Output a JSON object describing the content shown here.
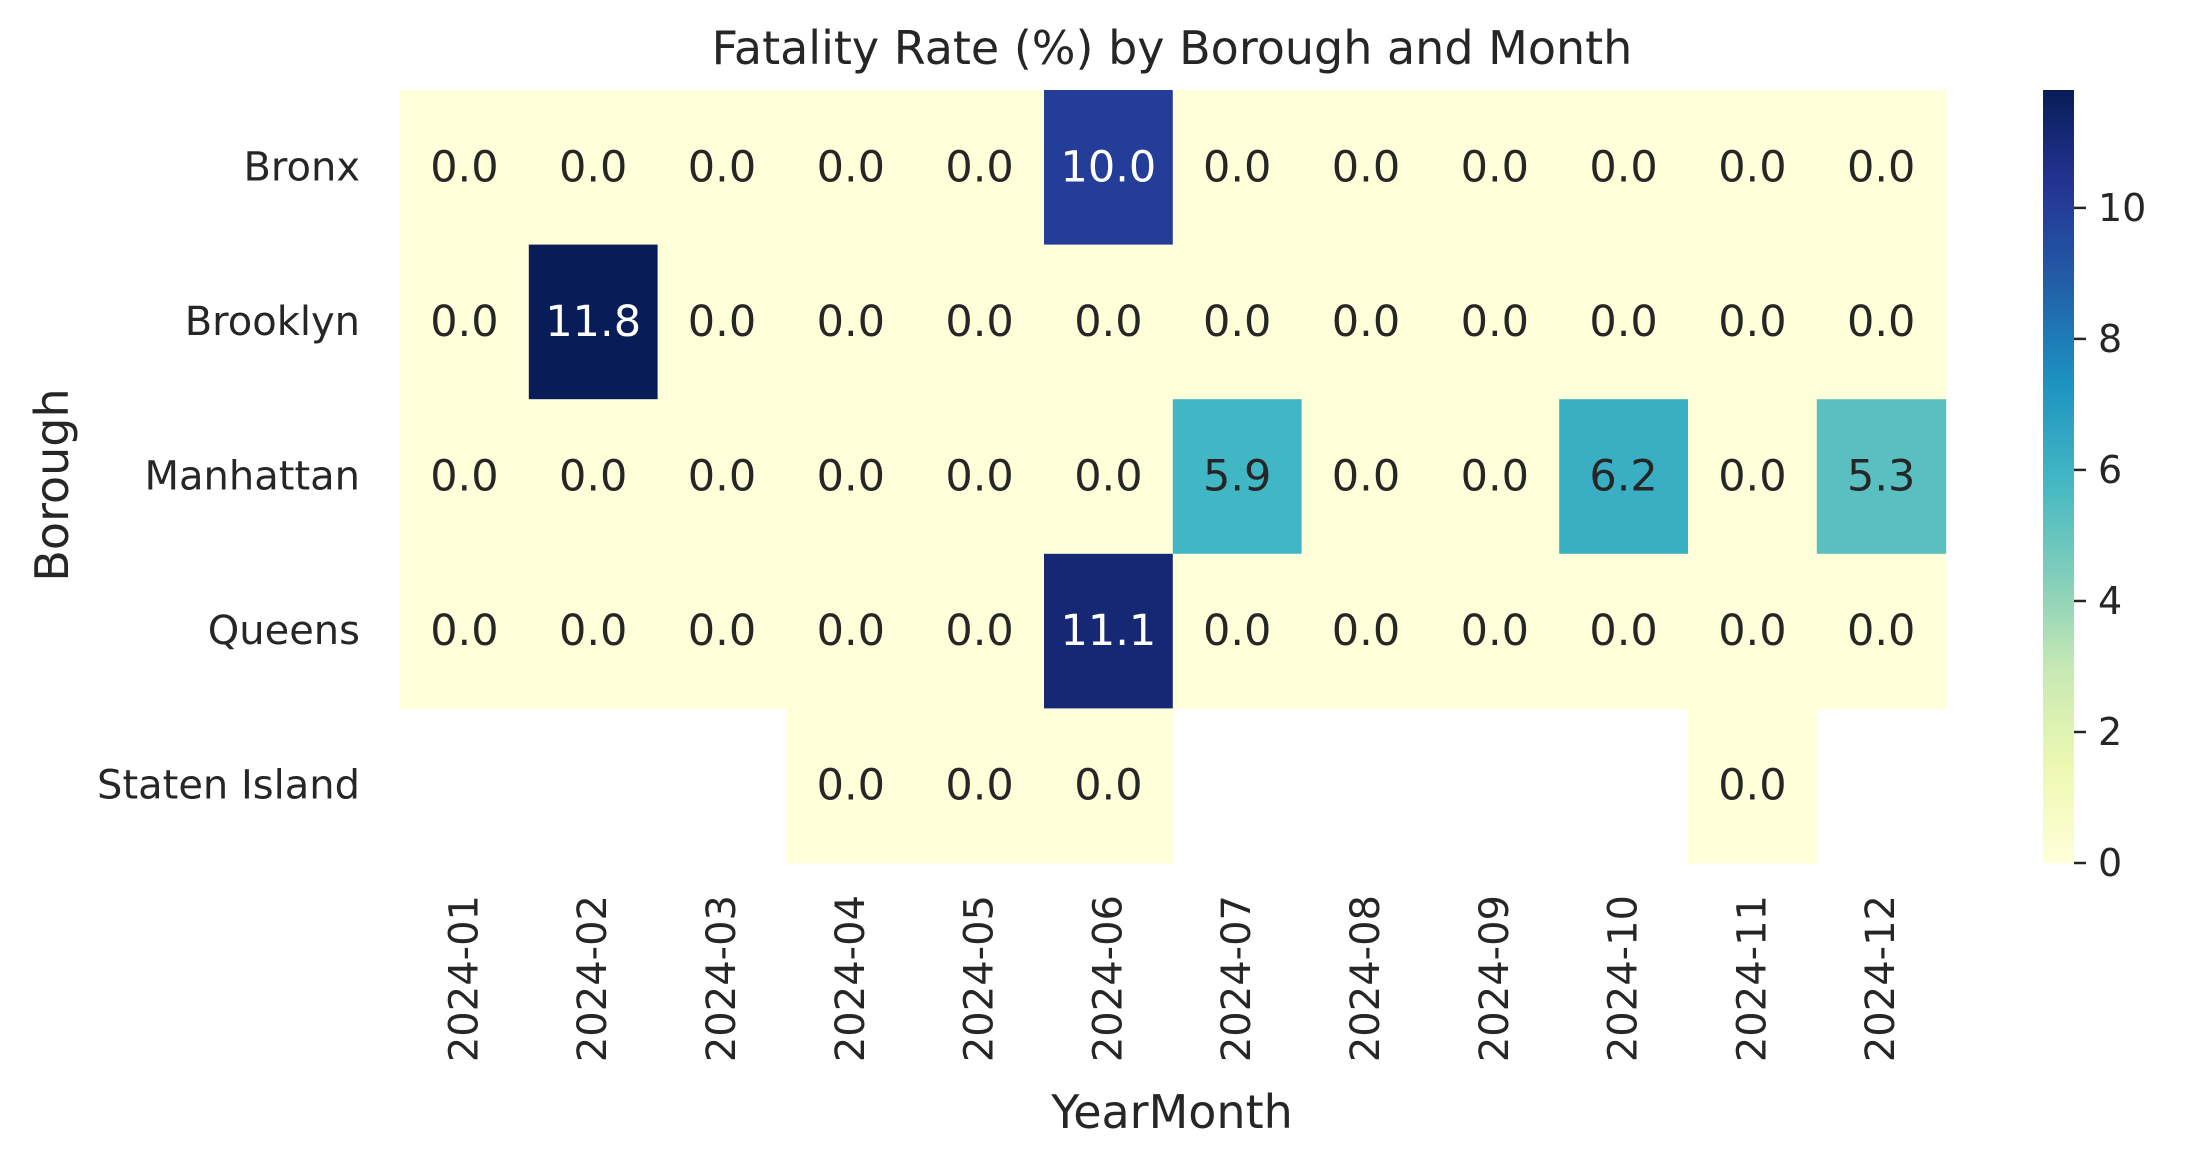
{
  "chart_data": {
    "type": "heatmap",
    "title": "Fatality Rate (%) by Borough and Month",
    "xlabel": "YearMonth",
    "ylabel": "Borough",
    "x": [
      "2024-01",
      "2024-02",
      "2024-03",
      "2024-04",
      "2024-05",
      "2024-06",
      "2024-07",
      "2024-08",
      "2024-09",
      "2024-10",
      "2024-11",
      "2024-12"
    ],
    "y": [
      "Bronx",
      "Brooklyn",
      "Manhattan",
      "Queens",
      "Staten Island"
    ],
    "values": [
      [
        0.0,
        0.0,
        0.0,
        0.0,
        0.0,
        10.0,
        0.0,
        0.0,
        0.0,
        0.0,
        0.0,
        0.0
      ],
      [
        0.0,
        11.8,
        0.0,
        0.0,
        0.0,
        0.0,
        0.0,
        0.0,
        0.0,
        0.0,
        0.0,
        0.0
      ],
      [
        0.0,
        0.0,
        0.0,
        0.0,
        0.0,
        0.0,
        5.9,
        0.0,
        0.0,
        6.2,
        0.0,
        5.3
      ],
      [
        0.0,
        0.0,
        0.0,
        0.0,
        0.0,
        11.1,
        0.0,
        0.0,
        0.0,
        0.0,
        0.0,
        0.0
      ],
      [
        null,
        null,
        null,
        0.0,
        0.0,
        0.0,
        null,
        null,
        null,
        null,
        0.0,
        null
      ]
    ],
    "colormap": "YlGnBu",
    "colorbar": {
      "range": [
        0,
        11.8
      ],
      "ticks": [
        0,
        2,
        4,
        6,
        8,
        10
      ]
    },
    "grid": false,
    "legend": "none"
  }
}
